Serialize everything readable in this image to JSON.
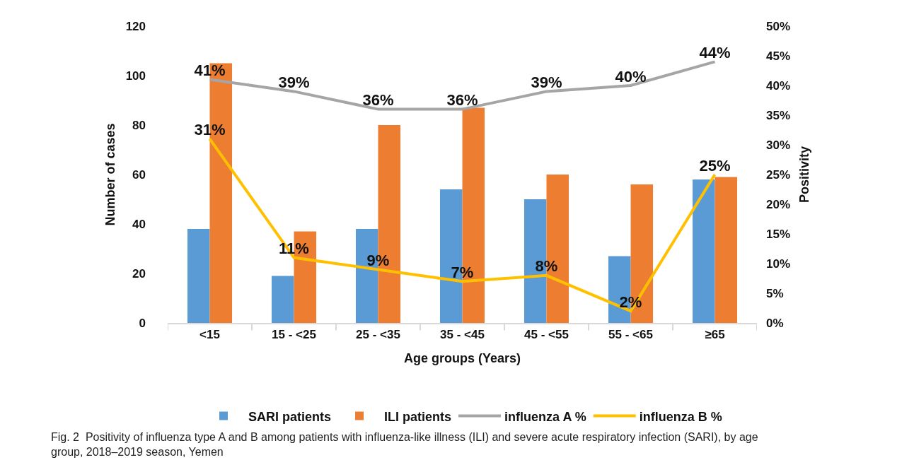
{
  "chart_data": {
    "type": "bar",
    "categories": [
      "<15",
      "15 - <25",
      "25 - <35",
      "35 - <45",
      "45 - <55",
      "55 - <65",
      "≥65"
    ],
    "series": [
      {
        "name": "SARI patients",
        "color": "#5b9bd5",
        "values": [
          38,
          19,
          38,
          54,
          50,
          27,
          58
        ]
      },
      {
        "name": "ILI patients",
        "color": "#ed7d31",
        "values": [
          105,
          37,
          80,
          87,
          60,
          56,
          59
        ]
      },
      {
        "name": "influenza A %",
        "type": "line",
        "axis": "y2",
        "color": "#a5a5a5",
        "values": [
          41,
          39,
          36,
          36,
          39,
          40,
          44
        ],
        "value_labels": [
          "41%",
          "39%",
          "36%",
          "36%",
          "39%",
          "40%",
          "44%"
        ]
      },
      {
        "name": "influenza B %",
        "type": "line",
        "axis": "y2",
        "color": "#ffc000",
        "values": [
          31,
          11,
          9,
          7,
          8,
          2,
          25
        ],
        "value_labels": [
          "31%",
          "11%",
          "9%",
          "7%",
          "8%",
          "2%",
          "25%"
        ]
      }
    ],
    "xlabel": "Age groups (Years)",
    "ylabel": "Number of cases",
    "y2label": "Positivity",
    "ylim": [
      0,
      120
    ],
    "yticks": [
      0,
      20,
      40,
      60,
      80,
      100,
      120
    ],
    "y2lim": [
      0,
      50
    ],
    "y2ticks": [
      {
        "value": 0,
        "label": "0%"
      },
      {
        "value": 5,
        "label": "5%"
      },
      {
        "value": 10,
        "label": "10%"
      },
      {
        "value": 15,
        "label": "15%"
      },
      {
        "value": 20,
        "label": "20%"
      },
      {
        "value": 25,
        "label": "25%"
      },
      {
        "value": 30,
        "label": "30%"
      },
      {
        "value": 35,
        "label": "35%"
      },
      {
        "value": 40,
        "label": "40%"
      },
      {
        "value": 45,
        "label": "45%"
      },
      {
        "value": 50,
        "label": "50%"
      }
    ],
    "grid": false,
    "legend": "bottom",
    "marker": "none",
    "line_style": "solid",
    "annotations": [
      "Fig. 2  Positivity of influenza type A and B among patients with influenza-like illness (ILI) and severe acute respiratory infection (SARI), by age group, 2018–2019 season, Yemen"
    ]
  }
}
